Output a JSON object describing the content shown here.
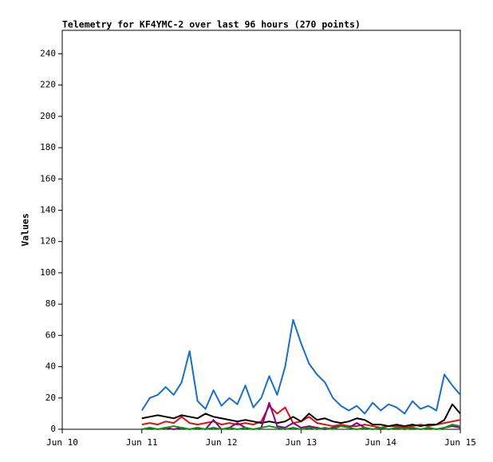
{
  "chart_data": {
    "type": "line",
    "title": "Telemetry for KF4YMC-2 over last 96 hours (270 points)",
    "y_label": "Values",
    "x": [
      11,
      11.1,
      11.2,
      11.3,
      11.4,
      11.5,
      11.6,
      11.7,
      11.8,
      11.9,
      12,
      12.1,
      12.2,
      12.3,
      12.4,
      12.5,
      12.6,
      12.7,
      12.8,
      12.9,
      13,
      13.1,
      13.2,
      13.3,
      13.4,
      13.5,
      13.6,
      13.7,
      13.8,
      13.9,
      14,
      14.1,
      14.2,
      14.3,
      14.4,
      14.5,
      14.6,
      14.7,
      14.8,
      14.9,
      15
    ],
    "series": [
      {
        "color": "#1a6fc4",
        "values": [
          12,
          20,
          22,
          27,
          22,
          30,
          50,
          18,
          13,
          25,
          15,
          20,
          16,
          28,
          14,
          20,
          34,
          22,
          40,
          70,
          55,
          42,
          35,
          30,
          20,
          15,
          12,
          15,
          10,
          17,
          12,
          16,
          14,
          10,
          18,
          13,
          15,
          12,
          35,
          28,
          22
        ]
      },
      {
        "color": "#e01010",
        "values": [
          3,
          4,
          3,
          5,
          4,
          8,
          4,
          3,
          4,
          5,
          3,
          4,
          3,
          4,
          3,
          5,
          15,
          10,
          14,
          4,
          5,
          8,
          4,
          3,
          2,
          3,
          2,
          2,
          3,
          2,
          1,
          2,
          2,
          1,
          2,
          3,
          2,
          3,
          4,
          5,
          6
        ]
      },
      {
        "color": "#000000",
        "values": [
          7,
          8,
          9,
          8,
          7,
          9,
          8,
          7,
          10,
          8,
          7,
          6,
          5,
          6,
          5,
          4,
          5,
          4,
          5,
          8,
          5,
          10,
          6,
          7,
          5,
          4,
          5,
          7,
          6,
          3,
          3,
          2,
          3,
          2,
          3,
          2,
          3,
          3,
          6,
          16,
          10
        ]
      },
      {
        "color": "#8b008b",
        "values": [
          0,
          1,
          0,
          1,
          0,
          1,
          0,
          1,
          0,
          6,
          0,
          1,
          4,
          1,
          0,
          1,
          17,
          2,
          1,
          4,
          1,
          2,
          1,
          0,
          1,
          2,
          1,
          4,
          1,
          0,
          1,
          0,
          1,
          0,
          1,
          0,
          1,
          0,
          1,
          2,
          1
        ]
      },
      {
        "color": "#0a9a0a",
        "values": [
          0,
          1,
          0,
          1,
          2,
          1,
          0,
          1,
          0,
          1,
          0,
          1,
          0,
          1,
          0,
          1,
          2,
          1,
          0,
          1,
          0,
          1,
          0,
          1,
          0,
          2,
          1,
          0,
          1,
          0,
          1,
          0,
          1,
          0,
          1,
          0,
          1,
          0,
          1,
          3,
          2
        ]
      }
    ],
    "xlim": [
      10,
      15
    ],
    "xticks": [
      {
        "value": 10,
        "label": "Jun 10"
      },
      {
        "value": 11,
        "label": "Jun 11"
      },
      {
        "value": 12,
        "label": "Jun 12"
      },
      {
        "value": 13,
        "label": "Jun 13"
      },
      {
        "value": 14,
        "label": "Jun 14"
      },
      {
        "value": 15,
        "label": "Jun 15"
      }
    ],
    "ylim": [
      0,
      255
    ],
    "yticks": [
      0,
      20,
      40,
      60,
      80,
      100,
      120,
      140,
      160,
      180,
      200,
      220,
      240
    ]
  }
}
